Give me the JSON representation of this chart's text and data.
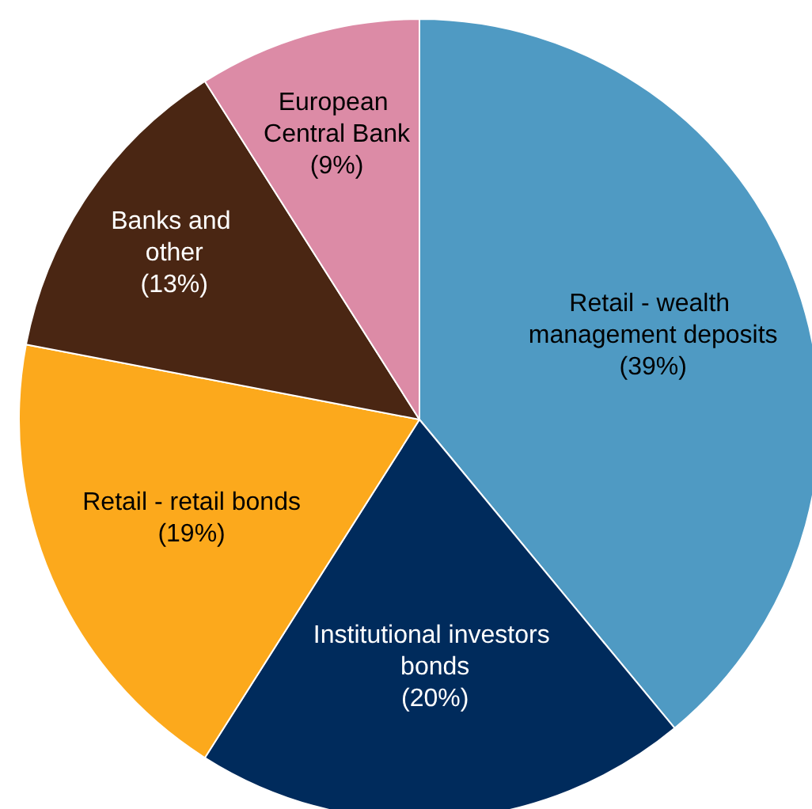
{
  "chart_data": {
    "type": "pie",
    "categories": [
      "Retail - wealth management deposits",
      "Institutional investors bonds",
      "Retail - retail bonds",
      "Banks and other",
      "European Central Bank"
    ],
    "values": [
      39,
      20,
      19,
      13,
      9
    ],
    "colors": [
      "#4f9ac3",
      "#002b5c",
      "#fca91c",
      "#4a2613",
      "#dc8ba6"
    ],
    "value_labels": [
      "(39%)",
      "(20%)",
      "(19%)",
      "(13%)",
      "(9%)"
    ]
  }
}
